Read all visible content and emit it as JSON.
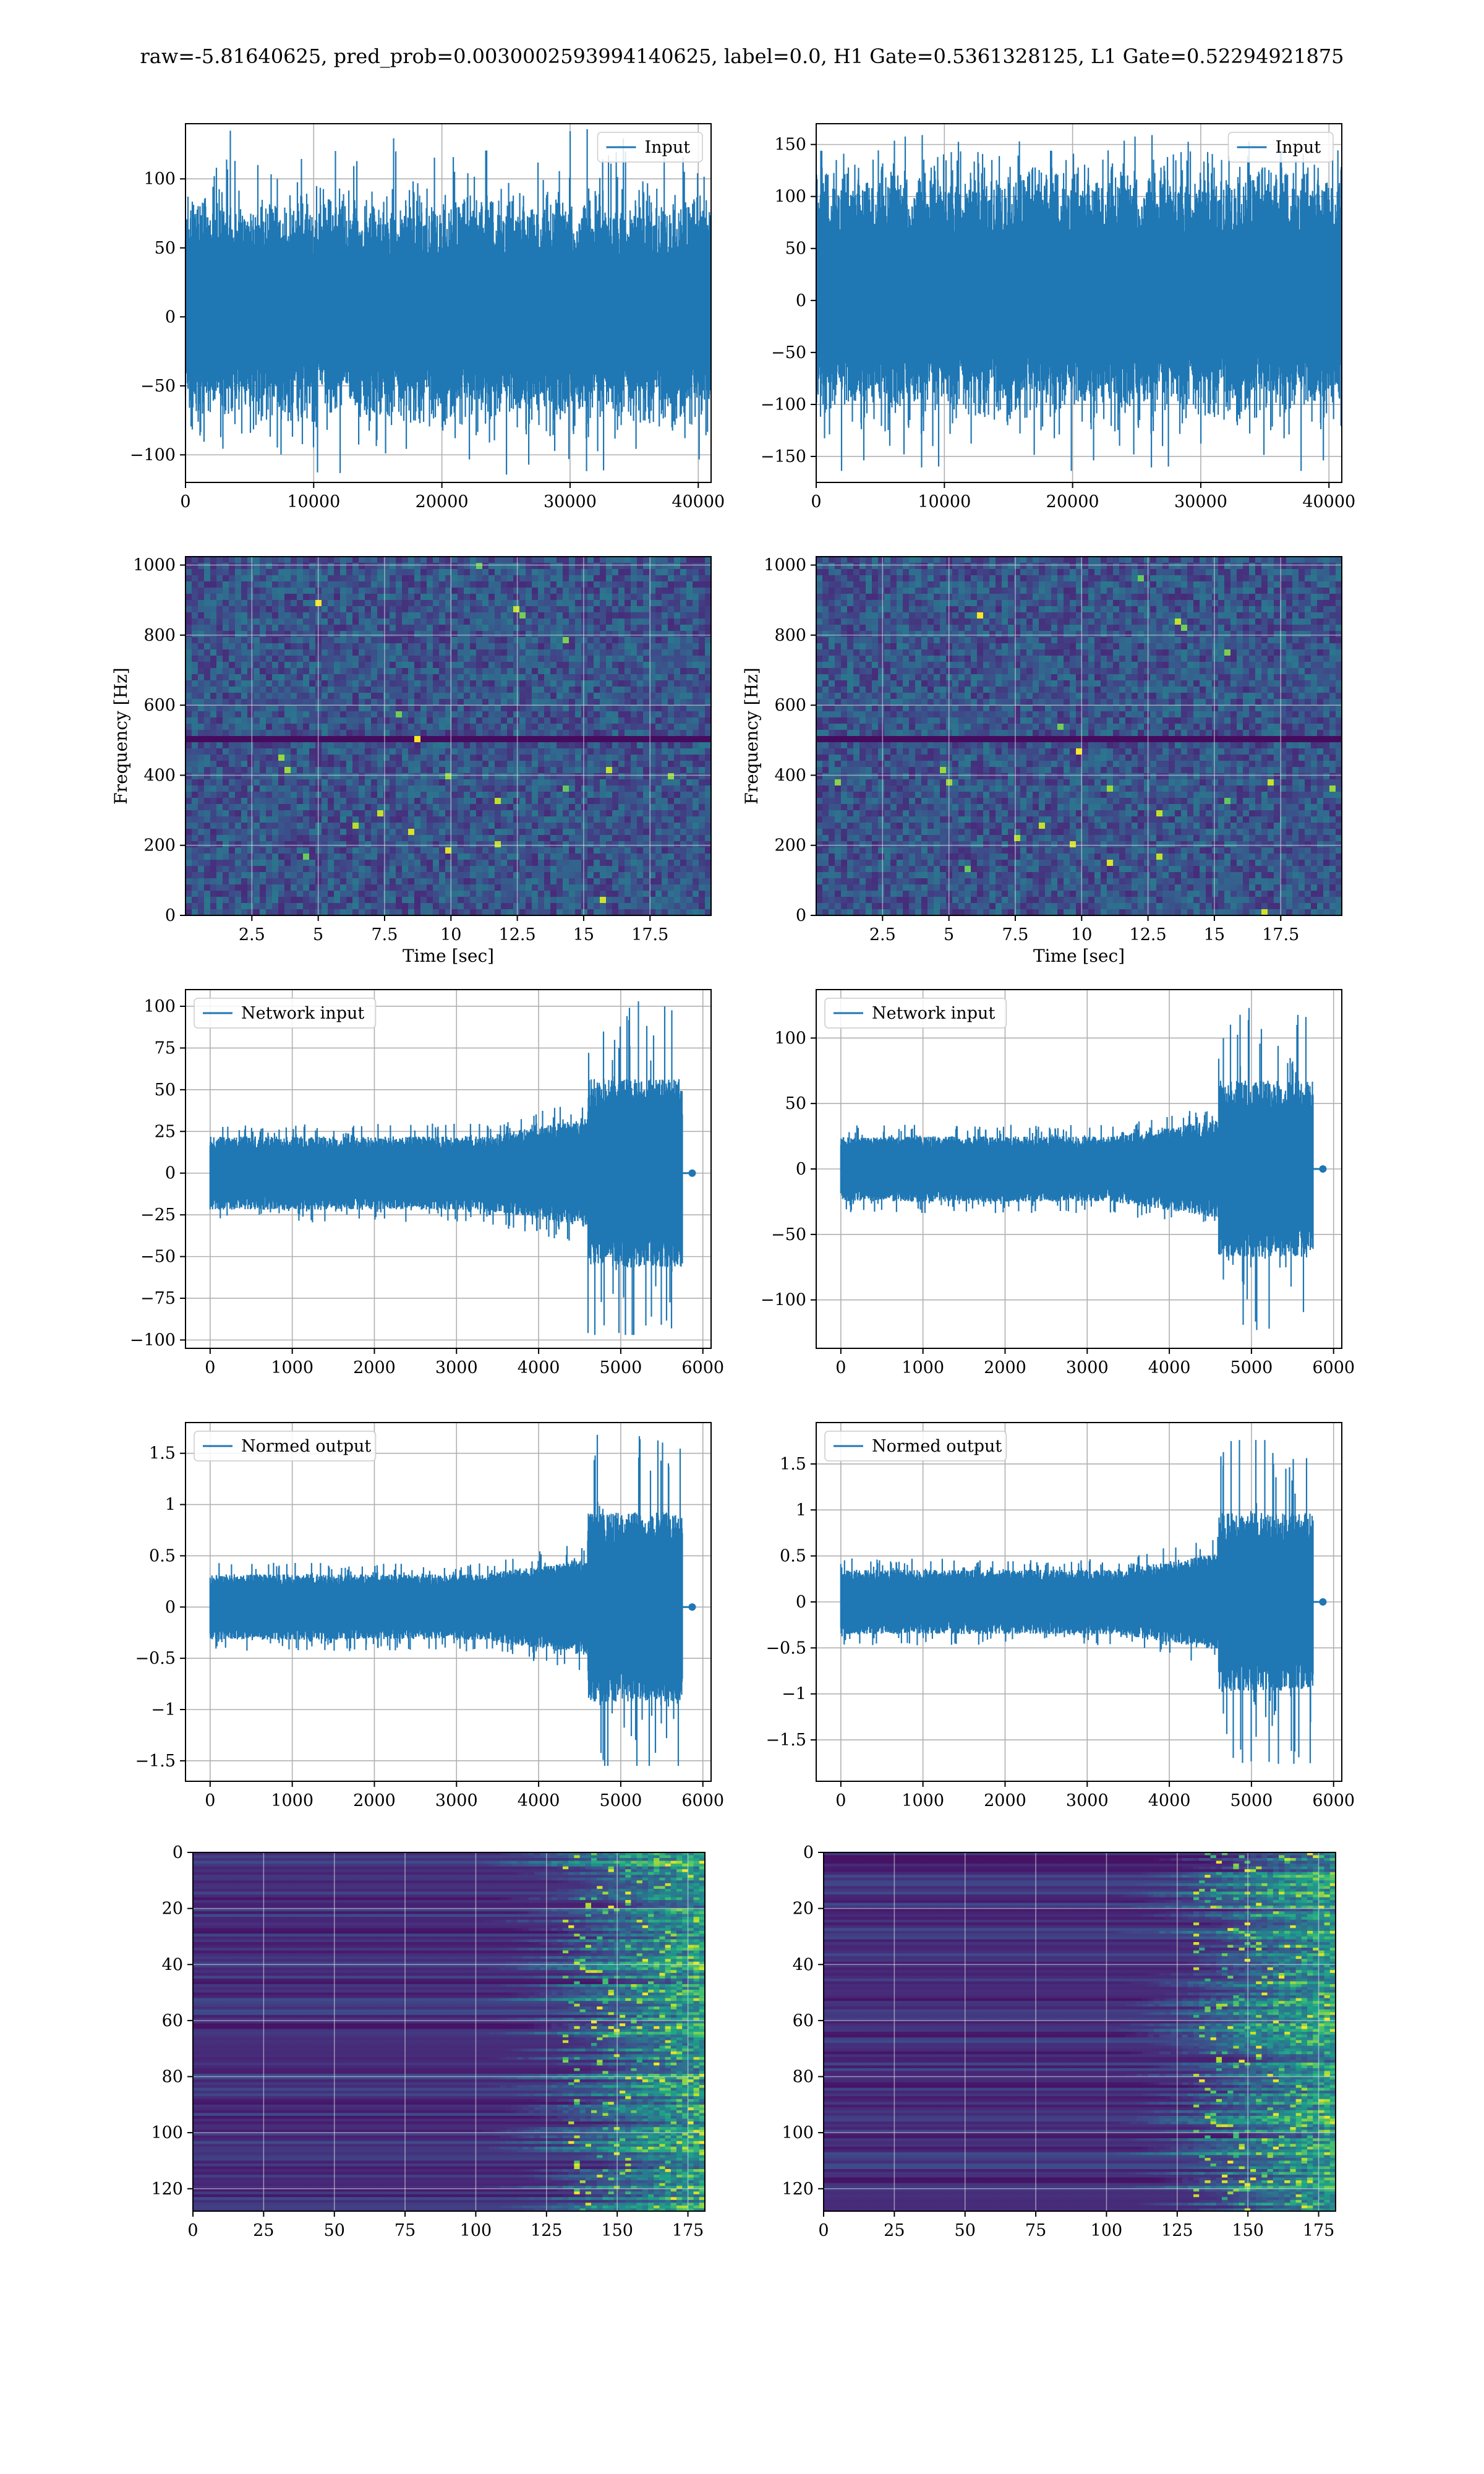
{
  "figure": {
    "title": "raw=-5.81640625, pred_prob=0.003000259399414062​5, label=0.0, H1 Gate=0.5361328125, L1 Gate=0.52294921875"
  },
  "colors": {
    "series_blue": "#1f77b4",
    "grid": "#b0b0b0",
    "viridis_low": "#440154",
    "viridis_mid": "#21918c",
    "viridis_high": "#fde725"
  },
  "chart_data": [
    {
      "type": "line",
      "id": "input-h1",
      "legend": [
        "Input"
      ],
      "legend_position": "upper right",
      "x": [
        0,
        40960
      ],
      "xlim": [
        0,
        41000
      ],
      "xticks": [
        0,
        10000,
        20000,
        30000,
        40000
      ],
      "ylim": [
        -120,
        140
      ],
      "yticks": [
        -100,
        -50,
        0,
        50,
        100
      ],
      "envelope": {
        "x": [
          0,
          40960
        ],
        "y_min": -115,
        "y_max": 137,
        "core": [
          -55,
          55
        ]
      },
      "grid": true
    },
    {
      "type": "line",
      "id": "input-l1",
      "legend": [
        "Input"
      ],
      "legend_position": "upper right",
      "x": [
        0,
        40960
      ],
      "xlim": [
        0,
        41000
      ],
      "xticks": [
        0,
        10000,
        20000,
        30000,
        40000
      ],
      "ylim": [
        -175,
        170
      ],
      "yticks": [
        -150,
        -100,
        -50,
        0,
        50,
        100,
        150
      ],
      "envelope": {
        "x": [
          0,
          40960
        ],
        "y_min": -165,
        "y_max": 160,
        "core": [
          -80,
          80
        ]
      },
      "grid": true
    },
    {
      "type": "heatmap",
      "id": "spectrogram-h1",
      "xlabel": "Time [sec]",
      "ylabel": "Frequency [Hz]",
      "xlim": [
        0,
        19.8
      ],
      "ylim": [
        0,
        1024
      ],
      "xticks": [
        2.5,
        5.0,
        7.5,
        10.0,
        12.5,
        15.0,
        17.5
      ],
      "yticks": [
        0,
        200,
        400,
        600,
        800,
        1000
      ],
      "colormap": "viridis",
      "grid": true
    },
    {
      "type": "heatmap",
      "id": "spectrogram-l1",
      "xlabel": "Time [sec]",
      "ylabel": "Frequency [Hz]",
      "xlim": [
        0,
        19.8
      ],
      "ylim": [
        0,
        1024
      ],
      "xticks": [
        2.5,
        5.0,
        7.5,
        10.0,
        12.5,
        15.0,
        17.5
      ],
      "yticks": [
        0,
        200,
        400,
        600,
        800,
        1000
      ],
      "colormap": "viridis",
      "grid": true
    },
    {
      "type": "line",
      "id": "network-input-h1",
      "legend": [
        "Network input"
      ],
      "legend_position": "upper left",
      "xlim": [
        -300,
        6100
      ],
      "ylim": [
        -105,
        110
      ],
      "xticks": [
        0,
        1000,
        2000,
        3000,
        4000,
        5000,
        6000
      ],
      "yticks": [
        -100,
        -75,
        -50,
        -25,
        0,
        25,
        50,
        75,
        100
      ],
      "envelope": {
        "x": [
          0,
          5750
        ],
        "burst_start": 4600,
        "y_min": -97,
        "y_max": 103,
        "quiet_amp": 22
      },
      "grid": true
    },
    {
      "type": "line",
      "id": "network-input-l1",
      "legend": [
        "Network input"
      ],
      "legend_position": "upper left",
      "xlim": [
        -300,
        6100
      ],
      "ylim": [
        -137,
        137
      ],
      "xticks": [
        0,
        1000,
        2000,
        3000,
        4000,
        5000,
        6000
      ],
      "yticks": [
        -100,
        -50,
        0,
        50,
        100
      ],
      "envelope": {
        "x": [
          0,
          5750
        ],
        "burst_start": 4600,
        "y_min": -123,
        "y_max": 123,
        "quiet_amp": 25
      },
      "grid": true
    },
    {
      "type": "line",
      "id": "normed-output-h1",
      "legend": [
        "Normed output"
      ],
      "legend_position": "upper left",
      "xlim": [
        -300,
        6100
      ],
      "ylim": [
        -1.7,
        1.8
      ],
      "xticks": [
        0,
        1000,
        2000,
        3000,
        4000,
        5000,
        6000
      ],
      "yticks": [
        -1.5,
        -1.0,
        -0.5,
        0.0,
        0.5,
        1.0,
        1.5
      ],
      "envelope": {
        "x": [
          0,
          5750
        ],
        "burst_start": 4600,
        "y_min": -1.55,
        "y_max": 1.68,
        "quiet_amp": 0.32
      },
      "grid": true
    },
    {
      "type": "line",
      "id": "normed-output-l1",
      "legend": [
        "Normed output"
      ],
      "legend_position": "upper left",
      "xlim": [
        -300,
        6100
      ],
      "ylim": [
        -1.95,
        1.95
      ],
      "xticks": [
        0,
        1000,
        2000,
        3000,
        4000,
        5000,
        6000
      ],
      "yticks": [
        -1.5,
        -1.0,
        -0.5,
        0.0,
        0.5,
        1.0,
        1.5
      ],
      "envelope": {
        "x": [
          0,
          5750
        ],
        "burst_start": 4600,
        "y_min": -1.76,
        "y_max": 1.76,
        "quiet_amp": 0.35
      },
      "grid": true
    },
    {
      "type": "heatmap",
      "id": "feature-map-h1",
      "xlim": [
        0,
        181
      ],
      "ylim": [
        128,
        0
      ],
      "xticks": [
        0,
        25,
        50,
        75,
        100,
        125,
        150,
        175
      ],
      "yticks": [
        0,
        20,
        40,
        60,
        80,
        100,
        120
      ],
      "colormap": "viridis",
      "grid": true
    },
    {
      "type": "heatmap",
      "id": "feature-map-l1",
      "xlim": [
        0,
        181
      ],
      "ylim": [
        128,
        0
      ],
      "xticks": [
        0,
        25,
        50,
        75,
        100,
        125,
        150,
        175
      ],
      "yticks": [
        0,
        20,
        40,
        60,
        80,
        100,
        120
      ],
      "colormap": "viridis",
      "grid": true
    }
  ]
}
